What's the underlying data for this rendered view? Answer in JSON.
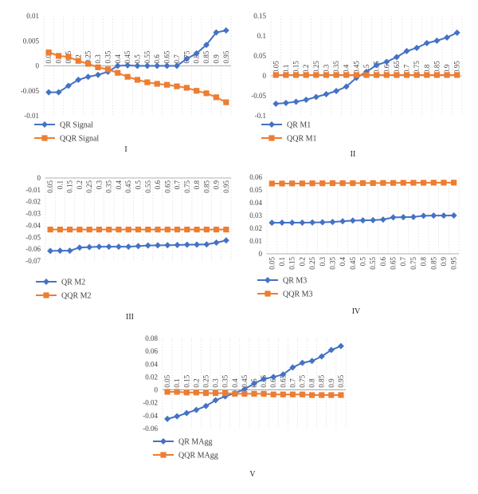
{
  "colors": {
    "qr": "#4472C4",
    "qqr": "#ED7D31",
    "zero_line": "#999999",
    "grid": "#d9d9d9"
  },
  "x_tick_labels": [
    "0.05",
    "0.1",
    "0.15",
    "0.2",
    "0.25",
    "0.3",
    "0.35",
    "0.4",
    "0.45",
    "0.5",
    "0.55",
    "0.6",
    "0.65",
    "0.7",
    "0.75",
    "0.8",
    "0.85",
    "0.9",
    "0.95"
  ],
  "chart_data": [
    {
      "panel": "I",
      "type": "line",
      "x": [
        0.05,
        0.1,
        0.15,
        0.2,
        0.25,
        0.3,
        0.35,
        0.4,
        0.45,
        0.5,
        0.55,
        0.6,
        0.65,
        0.7,
        0.75,
        0.8,
        0.85,
        0.9,
        0.95
      ],
      "ylim": [
        -0.01,
        0.01
      ],
      "yticks": [
        "0.01",
        "0.005",
        "0",
        "-0.005",
        "-0.01"
      ],
      "ytick_values": [
        0.01,
        0.005,
        0,
        -0.005,
        -0.01
      ],
      "grid": "vertical dashed",
      "legend_position": "bottom-left",
      "series": [
        {
          "name": "QR Signal",
          "marker": "diamond",
          "color": "#4472C4",
          "values": [
            -0.0053,
            -0.0053,
            -0.004,
            -0.0028,
            -0.0022,
            -0.0018,
            -0.0012,
            0.0,
            0.0001,
            0.0,
            0.0,
            0.0,
            0.0,
            0.0,
            0.0014,
            0.0025,
            0.0042,
            0.0067,
            0.0071
          ]
        },
        {
          "name": "QQR Signal",
          "marker": "square",
          "color": "#ED7D31",
          "values": [
            0.0027,
            0.002,
            0.0018,
            0.001,
            0.0004,
            -0.0003,
            -0.0007,
            -0.0014,
            -0.0022,
            -0.0028,
            -0.0033,
            -0.0036,
            -0.0038,
            -0.0041,
            -0.0044,
            -0.005,
            -0.0055,
            -0.0063,
            -0.0073
          ]
        }
      ]
    },
    {
      "panel": "II",
      "type": "line",
      "x": [
        0.05,
        0.1,
        0.15,
        0.2,
        0.25,
        0.3,
        0.35,
        0.4,
        0.45,
        0.5,
        0.55,
        0.6,
        0.65,
        0.7,
        0.75,
        0.8,
        0.85,
        0.9,
        0.95
      ],
      "ylim": [
        -0.1,
        0.15
      ],
      "yticks": [
        "0.15",
        "0.1",
        "0.05",
        "0",
        "-0.05",
        "-0.1"
      ],
      "ytick_values": [
        0.15,
        0.1,
        0.05,
        0,
        -0.05,
        -0.1
      ],
      "grid": "vertical dashed",
      "legend_position": "bottom-left",
      "series": [
        {
          "name": "QR M1",
          "marker": "diamond",
          "color": "#4472C4",
          "values": [
            -0.07,
            -0.068,
            -0.065,
            -0.06,
            -0.053,
            -0.046,
            -0.038,
            -0.027,
            -0.005,
            0.01,
            0.027,
            0.035,
            0.047,
            0.062,
            0.07,
            0.082,
            0.088,
            0.096,
            0.108
          ]
        },
        {
          "name": "QQR M1",
          "marker": "square",
          "color": "#ED7D31",
          "values": [
            0.002,
            0.002,
            0.002,
            0.002,
            0.002,
            0.002,
            0.002,
            0.002,
            0.002,
            0.002,
            0.002,
            0.002,
            0.002,
            0.002,
            0.002,
            0.002,
            0.002,
            0.002,
            0.002
          ]
        }
      ]
    },
    {
      "panel": "III",
      "type": "line",
      "x": [
        0.05,
        0.1,
        0.15,
        0.2,
        0.25,
        0.3,
        0.35,
        0.4,
        0.45,
        0.5,
        0.55,
        0.6,
        0.65,
        0.7,
        0.75,
        0.8,
        0.85,
        0.9,
        0.95
      ],
      "ylim": [
        -0.07,
        0
      ],
      "yticks": [
        "0",
        "-0.01",
        "-0.02",
        "-0.03",
        "-0.04",
        "-0.05",
        "-0.06",
        "-0.07"
      ],
      "ytick_values": [
        0,
        -0.01,
        -0.02,
        -0.03,
        -0.04,
        -0.05,
        -0.06,
        -0.07
      ],
      "grid": "vertical dashed",
      "legend_position": "bottom-left",
      "series": [
        {
          "name": "QR M2",
          "marker": "diamond",
          "color": "#4472C4",
          "values": [
            -0.0615,
            -0.0613,
            -0.0613,
            -0.0587,
            -0.0583,
            -0.058,
            -0.058,
            -0.058,
            -0.058,
            -0.0575,
            -0.057,
            -0.0568,
            -0.0567,
            -0.0565,
            -0.0563,
            -0.0562,
            -0.056,
            -0.0545,
            -0.0527
          ]
        },
        {
          "name": "QQR M2",
          "marker": "square",
          "color": "#ED7D31",
          "values": [
            -0.0435,
            -0.0435,
            -0.0435,
            -0.0435,
            -0.0435,
            -0.0435,
            -0.0435,
            -0.0435,
            -0.0435,
            -0.0435,
            -0.0435,
            -0.0435,
            -0.0435,
            -0.0435,
            -0.0435,
            -0.0435,
            -0.0435,
            -0.0435,
            -0.0435
          ]
        }
      ]
    },
    {
      "panel": "IV",
      "type": "line",
      "x": [
        0.05,
        0.1,
        0.15,
        0.2,
        0.25,
        0.3,
        0.35,
        0.4,
        0.45,
        0.5,
        0.55,
        0.6,
        0.65,
        0.7,
        0.75,
        0.8,
        0.85,
        0.9,
        0.95
      ],
      "ylim": [
        0,
        0.06
      ],
      "yticks": [
        "0.06",
        "0.05",
        "0.04",
        "0.03",
        "0.02",
        "0.01",
        "0"
      ],
      "ytick_values": [
        0.06,
        0.05,
        0.04,
        0.03,
        0.02,
        0.01,
        0
      ],
      "grid": "vertical dashed",
      "legend_position": "bottom-left",
      "series": [
        {
          "name": "QR M3",
          "marker": "diamond",
          "color": "#4472C4",
          "values": [
            0.0243,
            0.0244,
            0.0244,
            0.0244,
            0.0245,
            0.0247,
            0.0249,
            0.0255,
            0.026,
            0.0262,
            0.0263,
            0.0268,
            0.0285,
            0.0287,
            0.0288,
            0.0298,
            0.0299,
            0.0299,
            0.03
          ]
        },
        {
          "name": "QQR M3",
          "marker": "square",
          "color": "#ED7D31",
          "values": [
            0.055,
            0.055,
            0.0551,
            0.0551,
            0.0552,
            0.0552,
            0.0553,
            0.0553,
            0.0553,
            0.0554,
            0.0554,
            0.0555,
            0.0555,
            0.0556,
            0.0556,
            0.0556,
            0.0557,
            0.0557,
            0.0557
          ]
        }
      ]
    },
    {
      "panel": "V",
      "type": "line",
      "x": [
        0.05,
        0.1,
        0.15,
        0.2,
        0.25,
        0.3,
        0.35,
        0.4,
        0.45,
        0.5,
        0.55,
        0.6,
        0.65,
        0.7,
        0.75,
        0.8,
        0.85,
        0.9,
        0.95
      ],
      "ylim": [
        -0.06,
        0.08
      ],
      "yticks": [
        "0.08",
        "0.06",
        "0.04",
        "0.02",
        "0",
        "-0.02",
        "-0.04",
        "-0.06"
      ],
      "ytick_values": [
        0.08,
        0.06,
        0.04,
        0.02,
        0,
        -0.02,
        -0.04,
        -0.06
      ],
      "grid": "vertical dashed",
      "legend_position": "bottom-left",
      "series": [
        {
          "name": "QR MAgg",
          "marker": "diamond",
          "color": "#4472C4",
          "values": [
            -0.045,
            -0.041,
            -0.036,
            -0.031,
            -0.025,
            -0.016,
            -0.01,
            -0.005,
            0.001,
            0.01,
            0.017,
            0.02,
            0.024,
            0.035,
            0.042,
            0.045,
            0.052,
            0.062,
            0.068
          ]
        },
        {
          "name": "QQR MAgg",
          "marker": "square",
          "color": "#ED7D31",
          "values": [
            -0.003,
            -0.003,
            -0.004,
            -0.004,
            -0.005,
            -0.005,
            -0.005,
            -0.006,
            -0.006,
            -0.006,
            -0.006,
            -0.007,
            -0.007,
            -0.007,
            -0.007,
            -0.008,
            -0.008,
            -0.008,
            -0.008
          ]
        }
      ]
    }
  ]
}
